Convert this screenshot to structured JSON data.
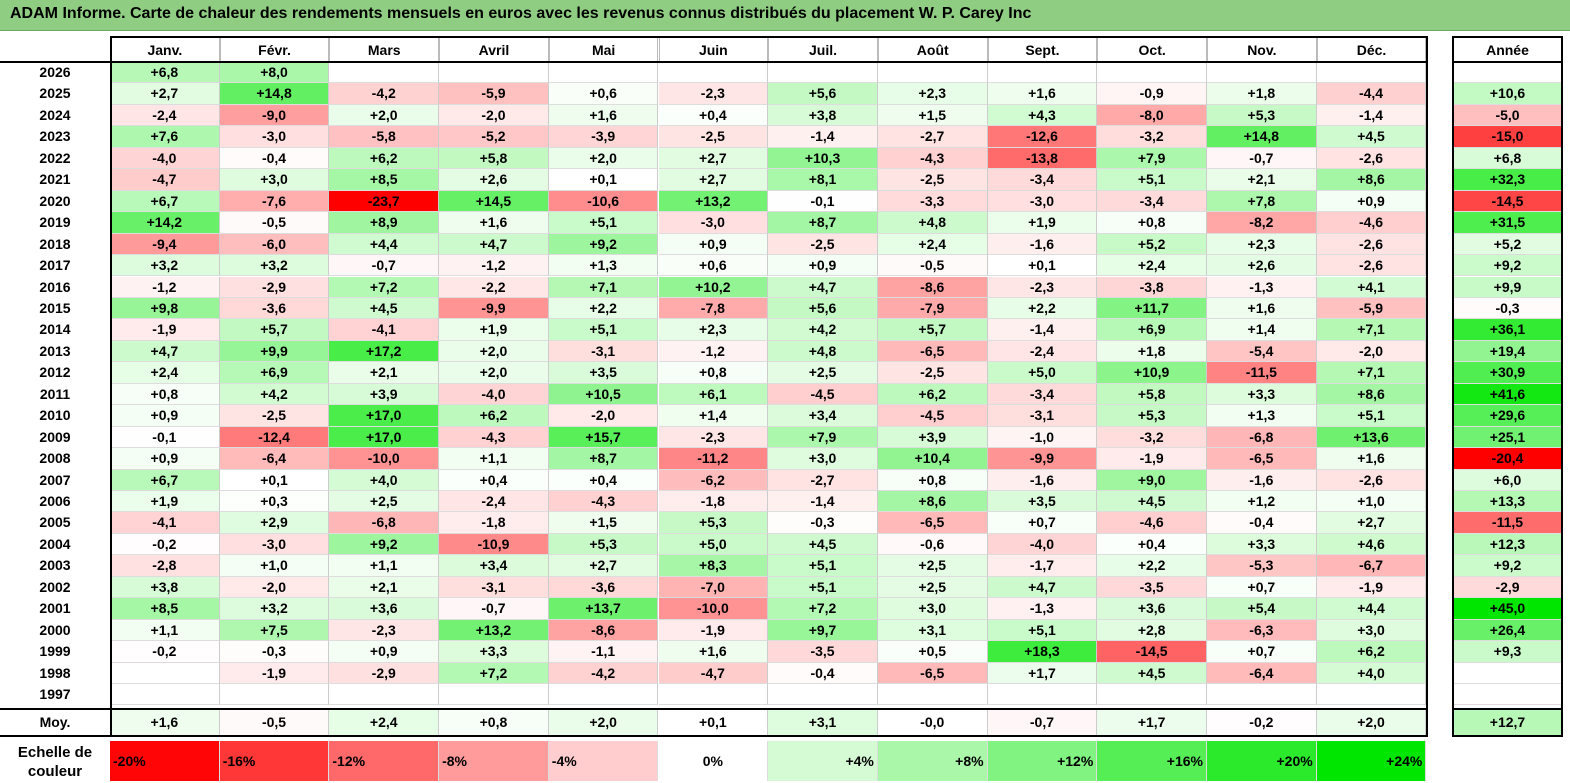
{
  "title": "ADAM Informe. Carte de chaleur des rendements mensuels en euros avec les revenus connus distribués du placement W. P. Carey Inc",
  "chart_data": {
    "type": "heatmap",
    "columns": [
      "Janv.",
      "Févr.",
      "Mars",
      "Avril",
      "Mai",
      "Juin",
      "Juil.",
      "Août",
      "Sept.",
      "Oct.",
      "Nov.",
      "Déc."
    ],
    "year_column": "Année",
    "rows": [
      {
        "year": "2026",
        "months": [
          "+6,8",
          "+8,0",
          "",
          "",
          "",
          "",
          "",
          "",
          "",
          "",
          "",
          ""
        ],
        "annual": ""
      },
      {
        "year": "2025",
        "months": [
          "+2,7",
          "+14,8",
          "-4,2",
          "-5,9",
          "+0,6",
          "-2,3",
          "+5,6",
          "+2,3",
          "+1,6",
          "-0,9",
          "+1,8",
          "-4,4"
        ],
        "annual": "+10,6"
      },
      {
        "year": "2024",
        "months": [
          "-2,4",
          "-9,0",
          "+2,0",
          "-2,0",
          "+1,6",
          "+0,4",
          "+3,8",
          "+1,5",
          "+4,3",
          "-8,0",
          "+5,3",
          "-1,4"
        ],
        "annual": "-5,0"
      },
      {
        "year": "2023",
        "months": [
          "+7,6",
          "-3,0",
          "-5,8",
          "-5,2",
          "-3,9",
          "-2,5",
          "-1,4",
          "-2,7",
          "-12,6",
          "-3,2",
          "+14,8",
          "+4,5"
        ],
        "annual": "-15,0"
      },
      {
        "year": "2022",
        "months": [
          "-4,0",
          "-0,4",
          "+6,2",
          "+5,8",
          "+2,0",
          "+2,7",
          "+10,3",
          "-4,3",
          "-13,8",
          "+7,9",
          "-0,7",
          "-2,6"
        ],
        "annual": "+6,8"
      },
      {
        "year": "2021",
        "months": [
          "-4,7",
          "+3,0",
          "+8,5",
          "+2,6",
          "+0,1",
          "+2,7",
          "+8,1",
          "-2,5",
          "-3,4",
          "+5,1",
          "+2,1",
          "+8,6"
        ],
        "annual": "+32,3"
      },
      {
        "year": "2020",
        "months": [
          "+6,7",
          "-7,6",
          "-23,7",
          "+14,5",
          "-10,6",
          "+13,2",
          "-0,1",
          "-3,3",
          "-3,0",
          "-3,4",
          "+7,8",
          "+0,9"
        ],
        "annual": "-14,5"
      },
      {
        "year": "2019",
        "months": [
          "+14,2",
          "-0,5",
          "+8,9",
          "+1,6",
          "+5,1",
          "-3,0",
          "+8,7",
          "+4,8",
          "+1,9",
          "+0,8",
          "-8,2",
          "-4,6"
        ],
        "annual": "+31,5"
      },
      {
        "year": "2018",
        "months": [
          "-9,4",
          "-6,0",
          "+4,4",
          "+4,7",
          "+9,2",
          "+0,9",
          "-2,5",
          "+2,4",
          "-1,6",
          "+5,2",
          "+2,3",
          "-2,6"
        ],
        "annual": "+5,2"
      },
      {
        "year": "2017",
        "months": [
          "+3,2",
          "+3,2",
          "-0,7",
          "-1,2",
          "+1,3",
          "+0,6",
          "+0,9",
          "-0,5",
          "+0,1",
          "+2,4",
          "+2,6",
          "-2,6"
        ],
        "annual": "+9,2"
      },
      {
        "year": "2016",
        "months": [
          "-1,2",
          "-2,9",
          "+7,2",
          "-2,2",
          "+7,1",
          "+10,2",
          "+4,7",
          "-8,6",
          "-2,3",
          "-3,8",
          "-1,3",
          "+4,1"
        ],
        "annual": "+9,9"
      },
      {
        "year": "2015",
        "months": [
          "+9,8",
          "-3,6",
          "+4,5",
          "-9,9",
          "+2,2",
          "-7,8",
          "+5,6",
          "-7,9",
          "+2,2",
          "+11,7",
          "+1,6",
          "-5,9"
        ],
        "annual": "-0,3"
      },
      {
        "year": "2014",
        "months": [
          "-1,9",
          "+5,7",
          "-4,1",
          "+1,9",
          "+5,1",
          "+2,3",
          "+4,2",
          "+5,7",
          "-1,4",
          "+6,9",
          "+1,4",
          "+7,1"
        ],
        "annual": "+36,1"
      },
      {
        "year": "2013",
        "months": [
          "+4,7",
          "+9,9",
          "+17,2",
          "+2,0",
          "-3,1",
          "-1,2",
          "+4,8",
          "-6,5",
          "-2,4",
          "+1,8",
          "-5,4",
          "-2,0"
        ],
        "annual": "+19,4"
      },
      {
        "year": "2012",
        "months": [
          "+2,4",
          "+6,9",
          "+2,1",
          "+2,0",
          "+3,5",
          "+0,8",
          "+2,5",
          "-2,5",
          "+5,0",
          "+10,9",
          "-11,5",
          "+7,1"
        ],
        "annual": "+30,9"
      },
      {
        "year": "2011",
        "months": [
          "+0,8",
          "+4,2",
          "+3,9",
          "-4,0",
          "+10,5",
          "+6,1",
          "-4,5",
          "+6,2",
          "-3,4",
          "+5,8",
          "+3,3",
          "+8,6"
        ],
        "annual": "+41,6"
      },
      {
        "year": "2010",
        "months": [
          "+0,9",
          "-2,5",
          "+17,0",
          "+6,2",
          "-2,0",
          "+1,4",
          "+3,4",
          "-4,5",
          "-3,1",
          "+5,3",
          "+1,3",
          "+5,1"
        ],
        "annual": "+29,6"
      },
      {
        "year": "2009",
        "months": [
          "-0,1",
          "-12,4",
          "+17,0",
          "-4,3",
          "+15,7",
          "-2,3",
          "+7,9",
          "+3,9",
          "-1,0",
          "-3,2",
          "-6,8",
          "+13,6"
        ],
        "annual": "+25,1"
      },
      {
        "year": "2008",
        "months": [
          "+0,9",
          "-6,4",
          "-10,0",
          "+1,1",
          "+8,7",
          "-11,2",
          "+3,0",
          "+10,4",
          "-9,9",
          "-1,9",
          "-6,5",
          "+1,6"
        ],
        "annual": "-20,4"
      },
      {
        "year": "2007",
        "months": [
          "+6,7",
          "+0,1",
          "+4,0",
          "+0,4",
          "+0,4",
          "-6,2",
          "-2,7",
          "+0,8",
          "-1,6",
          "+9,0",
          "-1,6",
          "-2,6"
        ],
        "annual": "+6,0"
      },
      {
        "year": "2006",
        "months": [
          "+1,9",
          "+0,3",
          "+2,5",
          "-2,4",
          "-4,3",
          "-1,8",
          "-1,4",
          "+8,6",
          "+3,5",
          "+4,5",
          "+1,2",
          "+1,0"
        ],
        "annual": "+13,3"
      },
      {
        "year": "2005",
        "months": [
          "-4,1",
          "+2,9",
          "-6,8",
          "-1,8",
          "+1,5",
          "+5,3",
          "-0,3",
          "-6,5",
          "+0,7",
          "-4,6",
          "-0,4",
          "+2,7"
        ],
        "annual": "-11,5"
      },
      {
        "year": "2004",
        "months": [
          "-0,2",
          "-3,0",
          "+9,2",
          "-10,9",
          "+5,3",
          "+5,0",
          "+4,5",
          "-0,6",
          "-4,0",
          "+0,4",
          "+3,3",
          "+4,6"
        ],
        "annual": "+12,3"
      },
      {
        "year": "2003",
        "months": [
          "-2,8",
          "+1,0",
          "+1,1",
          "+3,4",
          "+2,7",
          "+8,3",
          "+5,1",
          "+2,5",
          "-1,7",
          "+2,2",
          "-5,3",
          "-6,7"
        ],
        "annual": "+9,2"
      },
      {
        "year": "2002",
        "months": [
          "+3,8",
          "-2,0",
          "+2,1",
          "-3,1",
          "-3,6",
          "-7,0",
          "+5,1",
          "+2,5",
          "+4,7",
          "-3,5",
          "+0,7",
          "-1,9"
        ],
        "annual": "-2,9"
      },
      {
        "year": "2001",
        "months": [
          "+8,5",
          "+3,2",
          "+3,6",
          "-0,7",
          "+13,7",
          "-10,0",
          "+7,2",
          "+3,0",
          "-1,3",
          "+3,6",
          "+5,4",
          "+4,4"
        ],
        "annual": "+45,0"
      },
      {
        "year": "2000",
        "months": [
          "+1,1",
          "+7,5",
          "-2,3",
          "+13,2",
          "-8,6",
          "-1,9",
          "+9,7",
          "+3,1",
          "+5,1",
          "+2,8",
          "-6,3",
          "+3,0"
        ],
        "annual": "+26,4"
      },
      {
        "year": "1999",
        "months": [
          "-0,2",
          "-0,3",
          "+0,9",
          "+3,3",
          "-1,1",
          "+1,6",
          "-3,5",
          "+0,5",
          "+18,3",
          "-14,5",
          "+0,7",
          "+6,2"
        ],
        "annual": "+9,3"
      },
      {
        "year": "1998",
        "months": [
          "",
          "-1,9",
          "-2,9",
          "+7,2",
          "-4,2",
          "-4,7",
          "-0,4",
          "-6,5",
          "+1,7",
          "+4,5",
          "-6,4",
          "+4,0"
        ],
        "annual": ""
      },
      {
        "year": "1997",
        "months": [
          "",
          "",
          "",
          "",
          "",
          "",
          "",
          "",
          "",
          "",
          "",
          ""
        ],
        "annual": ""
      }
    ],
    "average": {
      "label": "Moy.",
      "months": [
        "+1,6",
        "-0,5",
        "+2,4",
        "+0,8",
        "+2,0",
        "+0,1",
        "+3,1",
        "-0,0",
        "-0,7",
        "+1,7",
        "-0,2",
        "+2,0"
      ],
      "annual": "+12,7"
    },
    "color_scale": {
      "label": "Echelle de couleur",
      "steps": [
        "-20%",
        "-16%",
        "-12%",
        "-8%",
        "-4%",
        "0%",
        "+4%",
        "+8%",
        "+12%",
        "+16%",
        "+20%",
        "+24%"
      ]
    }
  }
}
